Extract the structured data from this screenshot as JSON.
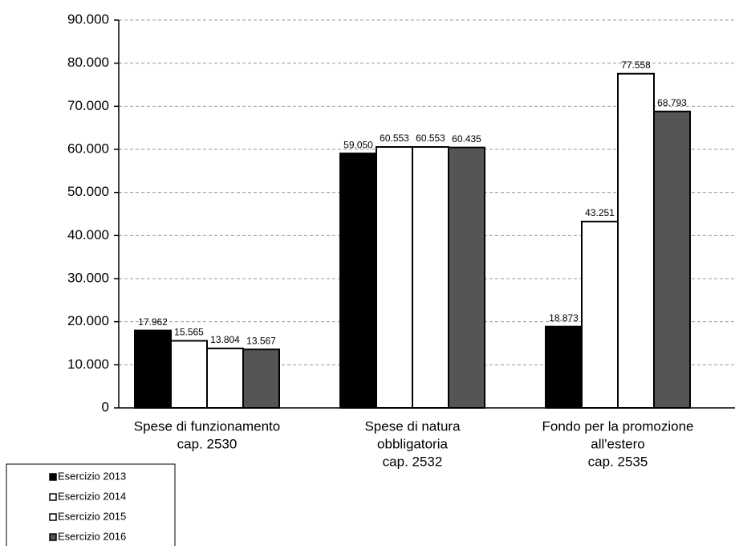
{
  "chart_data": {
    "type": "bar",
    "categories": [
      [
        "Spese di funzionamento",
        "cap. 2530"
      ],
      [
        "Spese di natura",
        "obbligatoria",
        "cap. 2532"
      ],
      [
        "Fondo per la promozione",
        "all'estero",
        "cap. 2535"
      ]
    ],
    "series": [
      {
        "name": "Esercizio 2013",
        "color": "#000000",
        "values": [
          17962,
          59050,
          18873
        ],
        "value_labels": [
          "17.962",
          "59.050",
          "18.873"
        ]
      },
      {
        "name": "Esercizio 2014",
        "color": "#ffffff",
        "values": [
          15565,
          60553,
          43251
        ],
        "value_labels": [
          "15.565",
          "60.553",
          "43.251"
        ]
      },
      {
        "name": "Esercizio 2015",
        "color": "#ffffff",
        "values": [
          13804,
          60553,
          77558
        ],
        "value_labels": [
          "13.804",
          "60.553",
          "77.558"
        ]
      },
      {
        "name": "Esercizio 2016",
        "color": "#555555",
        "values": [
          13567,
          60435,
          68793
        ],
        "value_labels": [
          "13.567",
          "60.435",
          "68.793"
        ]
      }
    ],
    "ylim": [
      0,
      90000
    ],
    "yticks": [
      0,
      {
        "value": 10000,
        "label": "10.000"
      },
      {
        "value": 20000,
        "label": "20.000"
      },
      {
        "value": 30000,
        "label": "30.000"
      },
      {
        "value": 40000,
        "label": "40.000"
      },
      {
        "value": 50000,
        "label": "50.000"
      },
      {
        "value": 60000,
        "label": "60.000"
      },
      {
        "value": 70000,
        "label": "70.000"
      },
      {
        "value": 80000,
        "label": "80.000"
      },
      {
        "value": 90000,
        "label": "90.000"
      }
    ],
    "grid": true,
    "legend": "bottom-left"
  }
}
